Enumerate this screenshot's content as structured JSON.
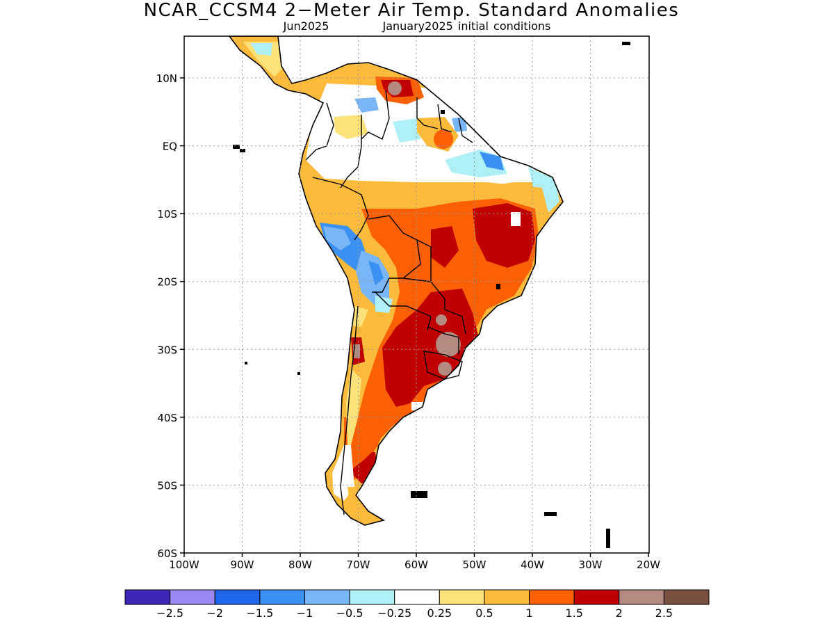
{
  "title": "NCAR_CCSM4 2−Meter Air Temp. Standard Anomalies",
  "subtitle_left": "Jun2025",
  "subtitle_right": "January2025 initial conditions",
  "map": {
    "lon_ticks": [
      "100W",
      "90W",
      "80W",
      "70W",
      "60W",
      "50W",
      "40W",
      "30W",
      "20W"
    ],
    "lat_ticks": [
      "10N",
      "EQ",
      "10S",
      "20S",
      "30S",
      "40S",
      "50S",
      "60S"
    ],
    "gridlines": true,
    "land_color": "#ffffff"
  },
  "colorbar": {
    "colors": [
      "#3b26b7",
      "#9c88f2",
      "#1f66ea",
      "#3b91f2",
      "#79b6f7",
      "#aff0f7",
      "#ffffff",
      "#fde27a",
      "#fdbb3b",
      "#fb6004",
      "#c00000",
      "#b48a80",
      "#7a5040"
    ],
    "labels": [
      "−2.5",
      "−2",
      "−1.5",
      "−1",
      "−0.5",
      "−0.25",
      "0.25",
      "0.5",
      "1",
      "1.5",
      "2",
      "2.5"
    ]
  }
}
